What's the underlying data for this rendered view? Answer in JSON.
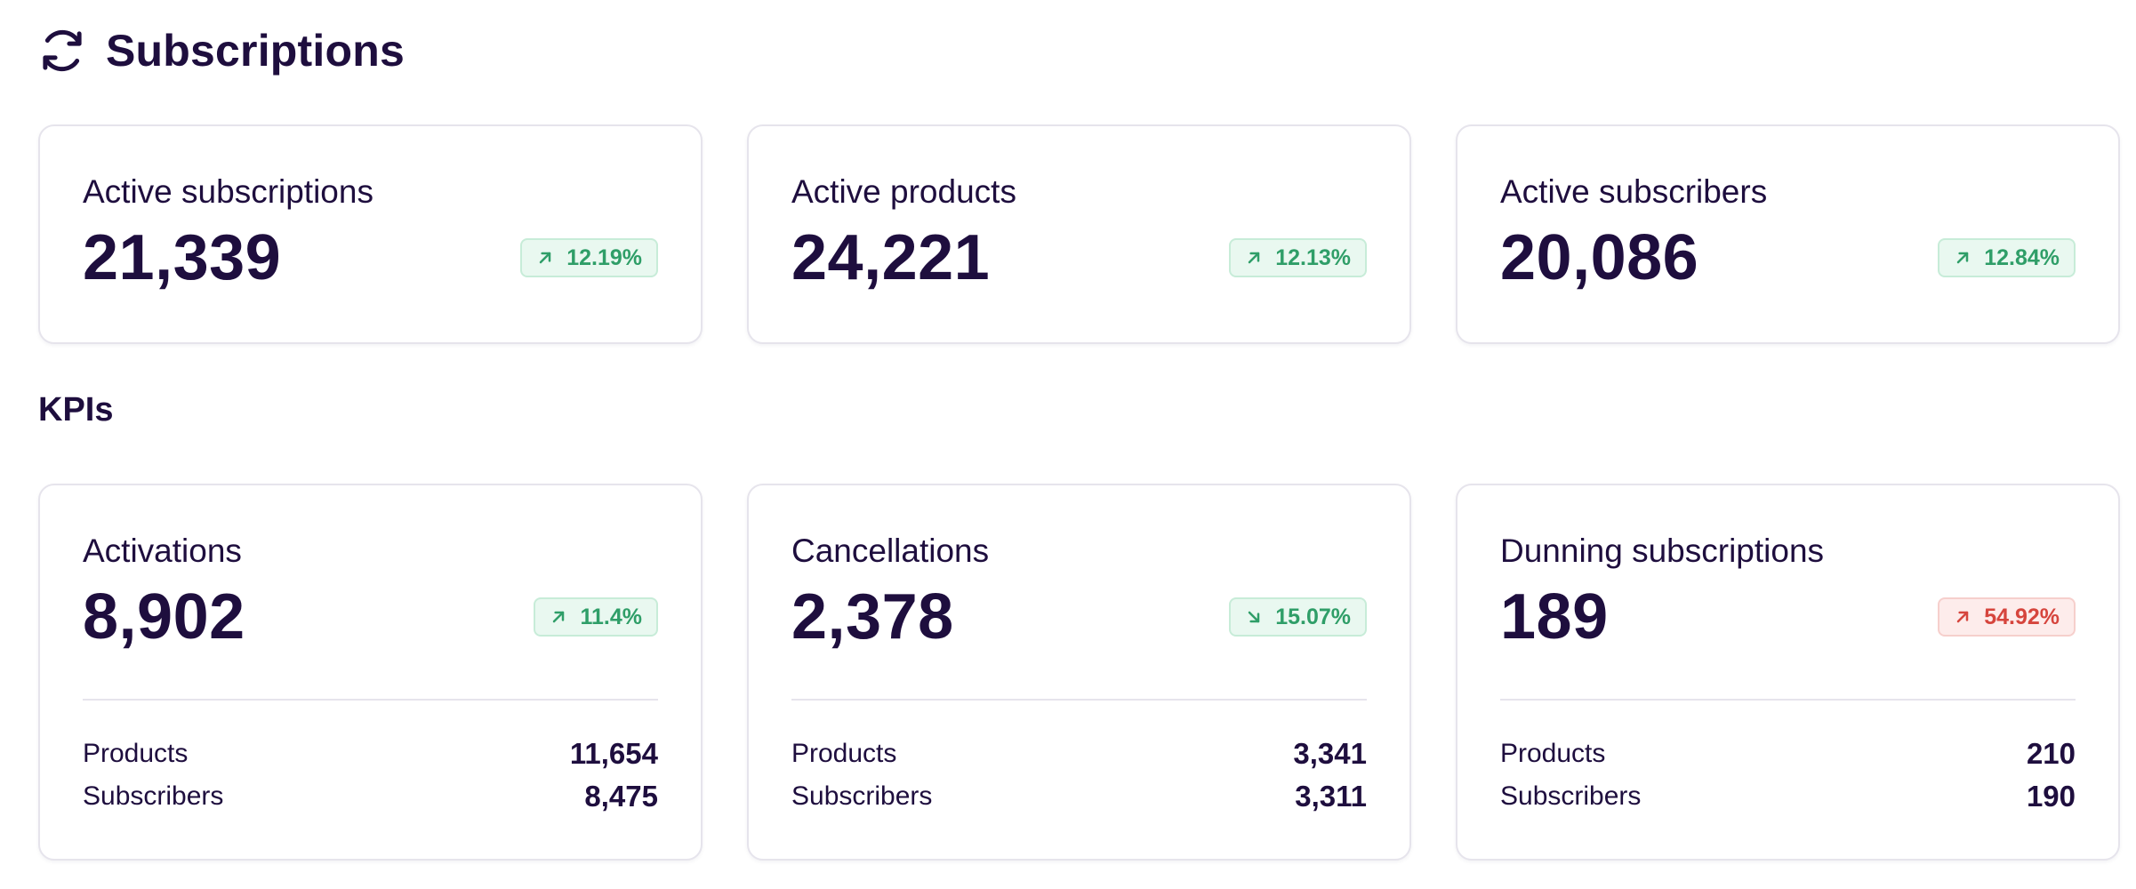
{
  "header": {
    "title": "Subscriptions",
    "icon": "refresh-icon"
  },
  "summary_cards": [
    {
      "label": "Active subscriptions",
      "value": "21,339",
      "change": "12.19%",
      "trend": "up",
      "status": "good"
    },
    {
      "label": "Active products",
      "value": "24,221",
      "change": "12.13%",
      "trend": "up",
      "status": "good"
    },
    {
      "label": "Active subscribers",
      "value": "20,086",
      "change": "12.84%",
      "trend": "up",
      "status": "good"
    }
  ],
  "kpis": {
    "title": "KPIs",
    "cards": [
      {
        "label": "Activations",
        "value": "8,902",
        "change": "11.4%",
        "trend": "up",
        "status": "good",
        "products_label": "Products",
        "products": "11,654",
        "subscribers_label": "Subscribers",
        "subscribers": "8,475"
      },
      {
        "label": "Cancellations",
        "value": "2,378",
        "change": "15.07%",
        "trend": "down",
        "status": "good",
        "products_label": "Products",
        "products": "3,341",
        "subscribers_label": "Subscribers",
        "subscribers": "3,311"
      },
      {
        "label": "Dunning subscriptions",
        "value": "189",
        "change": "54.92%",
        "trend": "up",
        "status": "bad",
        "products_label": "Products",
        "products": "210",
        "subscribers_label": "Subscribers",
        "subscribers": "190"
      }
    ]
  },
  "colors": {
    "text": "#1e0e3e",
    "good": "#2f9e68",
    "bad": "#d6453d",
    "border": "#e6e4ec"
  }
}
